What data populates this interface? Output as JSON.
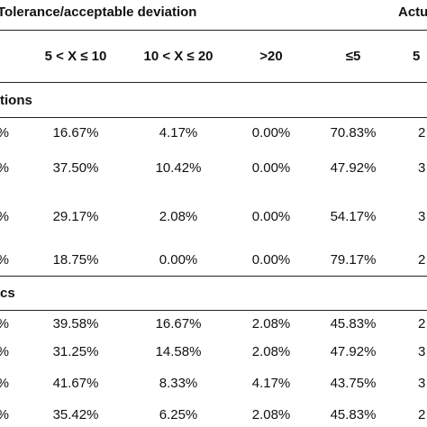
{
  "header": {
    "group_left": "Tolerance/acceptable deviation",
    "group_right": "Actu",
    "columns": [
      "5 < X ≤ 10",
      "10 < X ≤ 20",
      ">20",
      "≤5",
      "5"
    ]
  },
  "sections": [
    {
      "label": "tions",
      "rows": [
        [
          "%",
          "16.67%",
          "4.17%",
          "0.00%",
          "70.83%",
          "2"
        ],
        [
          "%",
          "37.50%",
          "10.42%",
          "0.00%",
          "47.92%",
          "3"
        ],
        [
          "%",
          "29.17%",
          "2.08%",
          "0.00%",
          "54.17%",
          "3"
        ],
        [
          "%",
          "18.75%",
          "0.00%",
          "0.00%",
          "79.17%",
          "2"
        ]
      ]
    },
    {
      "label": "cs",
      "rows": [
        [
          "%",
          "39.58%",
          "16.67%",
          "2.08%",
          "45.83%",
          "2"
        ],
        [
          "%",
          "31.25%",
          "14.58%",
          "2.08%",
          "47.92%",
          "3"
        ],
        [
          "%",
          "41.67%",
          "8.33%",
          "4.17%",
          "43.75%",
          "3"
        ],
        [
          "%",
          "35.42%",
          "6.25%",
          "2.08%",
          "45.83%",
          "2"
        ]
      ]
    }
  ]
}
